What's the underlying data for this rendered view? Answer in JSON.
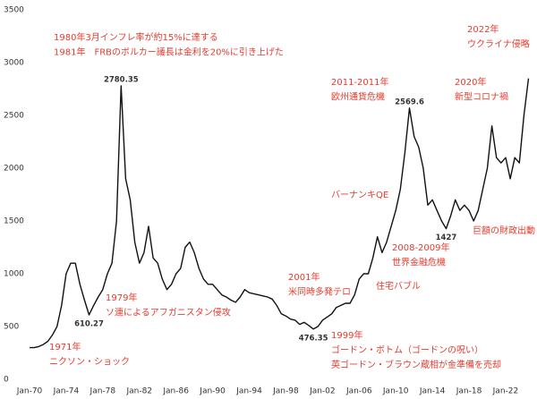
{
  "chart_data": {
    "type": "line",
    "color": "#111111",
    "categories": [
      "Jan-70",
      null,
      null,
      null,
      null,
      null,
      null,
      null,
      "Jan-74",
      null,
      null,
      null,
      null,
      null,
      null,
      null,
      "Jan-78",
      null,
      null,
      null,
      null,
      null,
      null,
      null,
      "Jan-82",
      null,
      null,
      null,
      null,
      null,
      null,
      null,
      "Jan-86",
      null,
      null,
      null,
      null,
      null,
      null,
      null,
      "Jan-90",
      null,
      null,
      null,
      null,
      null,
      null,
      null,
      "Jan-94",
      null,
      null,
      null,
      null,
      null,
      null,
      null,
      "Jan-98",
      null,
      null,
      null,
      null,
      null,
      null,
      null,
      "Jan-02",
      null,
      null,
      null,
      null,
      null,
      null,
      null,
      "Jan-06",
      null,
      null,
      null,
      null,
      null,
      null,
      null,
      "Jan-10",
      null,
      null,
      null,
      null,
      null,
      null,
      null,
      "Jan-14",
      null,
      null,
      null,
      null,
      null,
      null,
      null,
      "Jan-18",
      null,
      null,
      null,
      null,
      null,
      null,
      null,
      "Jan-22",
      null,
      null,
      null,
      null,
      null
    ],
    "values": [
      300,
      300,
      310,
      330,
      360,
      420,
      500,
      700,
      1000,
      1100,
      1100,
      900,
      750,
      610.27,
      700,
      780,
      850,
      1000,
      1100,
      1500,
      2780.35,
      1900,
      1700,
      1300,
      1100,
      1200,
      1450,
      1150,
      1100,
      950,
      850,
      900,
      1000,
      1050,
      1250,
      1300,
      1200,
      1050,
      950,
      900,
      900,
      850,
      800,
      780,
      750,
      730,
      780,
      850,
      820,
      810,
      800,
      790,
      780,
      760,
      700,
      620,
      600,
      570,
      560,
      520,
      540,
      510,
      476.35,
      500,
      560,
      590,
      620,
      680,
      700,
      720,
      720,
      800,
      950,
      1000,
      1000,
      1150,
      1350,
      1200,
      1300,
      1450,
      1600,
      1800,
      2150,
      2569.6,
      2300,
      2200,
      2000,
      1650,
      1700,
      1600,
      1500,
      1427,
      1550,
      1700,
      1600,
      1650,
      1600,
      1500,
      1600,
      1800,
      2000,
      2400,
      2100,
      2050,
      2100,
      1900,
      2100,
      2050,
      2500,
      2850
    ],
    "value_labels": [
      null,
      null,
      null,
      null,
      null,
      null,
      null,
      null,
      null,
      null,
      null,
      null,
      null,
      "610.27",
      null,
      null,
      null,
      null,
      null,
      null,
      "2780.35",
      null,
      null,
      null,
      null,
      null,
      null,
      null,
      null,
      null,
      null,
      null,
      null,
      null,
      null,
      null,
      null,
      null,
      null,
      null,
      null,
      null,
      null,
      null,
      null,
      null,
      null,
      null,
      null,
      null,
      null,
      null,
      null,
      null,
      null,
      null,
      null,
      null,
      null,
      null,
      null,
      null,
      "476.35",
      null,
      null,
      null,
      null,
      null,
      null,
      null,
      null,
      null,
      null,
      null,
      null,
      null,
      null,
      null,
      null,
      null,
      null,
      null,
      null,
      "2569.6",
      null,
      null,
      null,
      null,
      null,
      null,
      null,
      "1427",
      null,
      null,
      null,
      null,
      null,
      null,
      null,
      null,
      null,
      null,
      null,
      null,
      null,
      null,
      null,
      null,
      null,
      null
    ],
    "ylim": [
      0,
      3500
    ],
    "yticks": [
      0,
      500,
      1000,
      1500,
      2000,
      2500,
      3000,
      3500
    ],
    "annotations": [
      {
        "lines": [
          "1980年3月インフレ率が約15%に達する",
          "1981年　FRBのボルカー議長は金利を20%に引き上げた"
        ]
      },
      {
        "lines": [
          "2022年",
          "ウクライナ侵略"
        ]
      },
      {
        "lines": [
          "2011-2011年",
          "欧州通貨危機"
        ]
      },
      {
        "lines": [
          "2020年",
          "新型コロナ禍"
        ]
      },
      {
        "lines": [
          "バーナンキQE"
        ]
      },
      {
        "lines": [
          "巨額の財政出動"
        ]
      },
      {
        "lines": [
          "2008-2009年",
          "世界金融危機"
        ]
      },
      {
        "lines": [
          "住宅バブル"
        ]
      },
      {
        "lines": [
          "2001年",
          "米同時多発テロ"
        ]
      },
      {
        "lines": [
          "1979年",
          "ソ連によるアフガニスタン侵攻"
        ]
      },
      {
        "lines": [
          "1999年",
          "ゴードン・ボトム（ゴードンの呪い）",
          "英ゴードン・ブラウン蔵相が金準備を売却"
        ]
      },
      {
        "lines": [
          "1971年",
          "ニクソン・ショック"
        ]
      }
    ],
    "annotation_color": "#e63b2e"
  }
}
